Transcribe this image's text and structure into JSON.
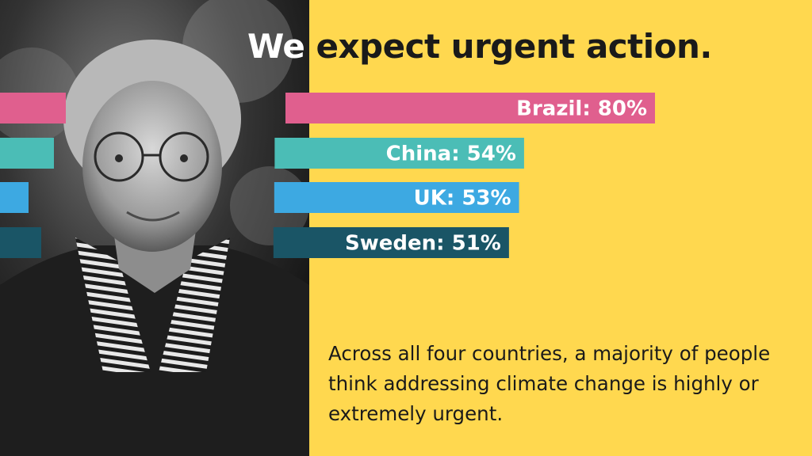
{
  "title_light": "We",
  "title_dark": "expect urgent action.",
  "caption": "Across all four countries, a majority of people think addressing climate change is highly or extremely urgent.",
  "colors": {
    "background": "#ffd84f",
    "text": "#1a1a1a"
  },
  "chart_data": {
    "type": "bar",
    "orientation": "horizontal",
    "categories": [
      "Brazil",
      "China",
      "UK",
      "Sweden"
    ],
    "values": [
      80,
      54,
      53,
      51
    ],
    "unit": "%",
    "labels": [
      "Brazil: 80%",
      "China: 54%",
      "UK: 53%",
      "Sweden: 51%"
    ],
    "colors": [
      "#e05f8e",
      "#4bbdb6",
      "#3da9e2",
      "#1a5566"
    ],
    "xlim": [
      0,
      100
    ],
    "grid": false,
    "legend": "none"
  }
}
